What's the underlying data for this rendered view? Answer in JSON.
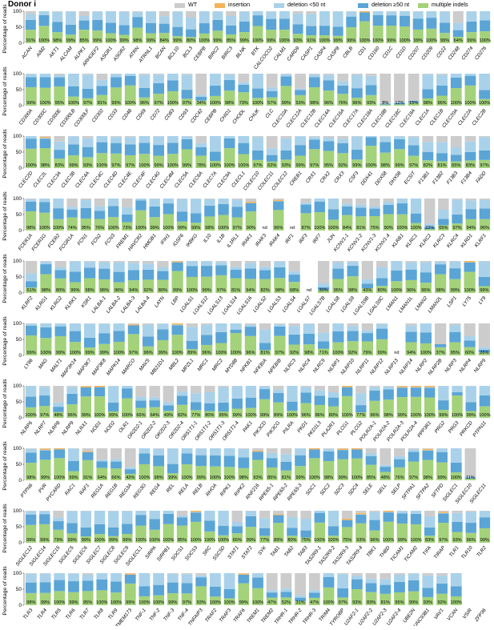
{
  "chart_data": {
    "type": "bar",
    "stacked": true,
    "title": "Donor i",
    "ylabel": "Percentage of reads",
    "ylim": [
      0,
      100
    ],
    "yticks": [
      0,
      50,
      100
    ],
    "legend_position": "top",
    "series": [
      {
        "name": "WT",
        "color": "#cccccc"
      },
      {
        "name": "insertion",
        "color": "#f5b35c"
      },
      {
        "name": "deletion <50 nt",
        "color": "#a9d2ea"
      },
      {
        "name": "deletion ≥50 nt",
        "color": "#5aa5d6"
      },
      {
        "name": "multiple indels",
        "color": "#a3d27a"
      }
    ],
    "panels": [
      {
        "genes": [
          "ACAN",
          "AIM2",
          "AKT1",
          "ALCAM",
          "ALPK1",
          "ARHGEF2",
          "ASGR1",
          "ASGR2",
          "ATRN",
          "ATRNL1",
          "BCAN",
          "BCL10",
          "BCL3",
          "CEBPB",
          "BIRC2",
          "BIRC3",
          "BLNK",
          "BTK",
          "CALCOCO2",
          "CALM1",
          "CARD9",
          "CASP1",
          "CASP4",
          "CASP8",
          "CBLB",
          "CD1",
          "CD160",
          "CD1C",
          "CD1D",
          "CD207",
          "CD209",
          "CD22",
          "CD248",
          "CD274",
          "CD276"
        ],
        "labels": [
          "91%",
          "100%",
          "98%",
          "99%",
          "85%",
          "99%",
          "100%",
          "99%",
          "98%",
          "99%",
          "84%",
          "99%",
          "80%",
          "100%",
          "99%",
          "85%",
          "99%",
          "100%",
          "99%",
          "100%",
          "93%",
          "91%",
          "100%",
          "99%",
          "99%",
          "100%",
          "100%",
          "99%",
          "100%",
          "99%",
          "100%",
          "99%",
          "64%",
          "99%",
          "100%"
        ],
        "mut": [
          91,
          100,
          98,
          99,
          85,
          99,
          100,
          99,
          98,
          99,
          84,
          99,
          80,
          100,
          99,
          85,
          99,
          100,
          99,
          100,
          93,
          91,
          100,
          99,
          99,
          100,
          100,
          99,
          100,
          99,
          100,
          99,
          64,
          99,
          100
        ]
      },
      {
        "genes": [
          "CD300A",
          "CD300C",
          "CD300E",
          "CD300LB",
          "CD300LF",
          "CD302",
          "CD33",
          "CD48",
          "CD69",
          "CD72",
          "CD83",
          "CD93",
          "CDC42",
          "CEBPB",
          "CHID1",
          "CHODL",
          "CHUK",
          "CLC",
          "CLEC10A",
          "CLEC12A",
          "CLEC12B",
          "CLEC14A",
          "CLEC16A",
          "CLEC17A",
          "CLEC18A",
          "CLEC18B",
          "CLEC18C",
          "CLEC19A",
          "CLEC1A",
          "CLEC1B",
          "CLEC20A",
          "CLEC2A",
          "CLEC2B"
        ],
        "labels": [
          "99%",
          "100%",
          "95%",
          "100%",
          "97%",
          "81%",
          "99%",
          "100%",
          "96%",
          "97%",
          "100%",
          "97%",
          "34%",
          "100%",
          "98%",
          "73%",
          "100%",
          "57%",
          "99%",
          "53%",
          "98%",
          "96%",
          "76%",
          "96%",
          "93%",
          "8%",
          "12%",
          "15%",
          "98%",
          "96%",
          "100%",
          "100%",
          "100%"
        ],
        "mut": [
          99,
          100,
          95,
          100,
          97,
          81,
          99,
          100,
          96,
          97,
          100,
          97,
          34,
          100,
          98,
          73,
          100,
          57,
          99,
          53,
          98,
          96,
          76,
          96,
          93,
          8,
          12,
          15,
          98,
          96,
          100,
          100,
          100
        ]
      },
      {
        "genes": [
          "CLEC2D",
          "CLEC2L",
          "CLEC3A",
          "CLEC3B",
          "CLEC4A",
          "CLEC4C",
          "CLEC4D",
          "CLEC4E",
          "CLEC4F",
          "CLEC4G",
          "CLEC4M",
          "CLEC5A",
          "CLEC6A",
          "CLEC7A",
          "CLEC9A",
          "CLECL1",
          "COLEC10",
          "COLEC11",
          "COLEC12",
          "CREB1",
          "CRX1",
          "CRX2",
          "CRX3",
          "CSF3",
          "DDX41",
          "DDX58",
          "DHX58",
          "ECSIT",
          "F13B1",
          "F13B2",
          "F13B3",
          "F13B4",
          "FADD"
        ],
        "labels": [
          "100%",
          "98%",
          "83%",
          "99%",
          "93%",
          "100%",
          "97%",
          "97%",
          "100%",
          "99%",
          "100%",
          "99%",
          "78%",
          "100%",
          "100%",
          "100%",
          "97%",
          "62%",
          "93%",
          "99%",
          "97%",
          "95%",
          "92%",
          "99%",
          "100%",
          "98%",
          "99%",
          "97%",
          "82%",
          "81%",
          "65%",
          "83%",
          "97%"
        ],
        "mut": [
          100,
          98,
          83,
          99,
          93,
          100,
          97,
          97,
          100,
          99,
          100,
          99,
          78,
          100,
          100,
          100,
          97,
          62,
          93,
          99,
          97,
          95,
          92,
          99,
          100,
          98,
          99,
          97,
          82,
          81,
          65,
          83,
          97
        ]
      },
      {
        "genes": [
          "FCER1A",
          "FCER1G",
          "FCER2",
          "FCGR1A",
          "FCN1",
          "FCN2",
          "FCN3",
          "FREM1",
          "HAVCR2",
          "HMGB1",
          "IFIH1",
          "IGSF6",
          "IKBKG",
          "IL10",
          "IL1B",
          "IL1RL1",
          "IRAK1",
          "IRAK3",
          "IRAK4",
          "IRF1",
          "IRF3",
          "IRF7",
          "JUN",
          "KCNV1-1",
          "KCNV1-2",
          "KCNV1-3",
          "KCNV1-4",
          "KLRB1",
          "KLRC1",
          "KLRC2",
          "KLRC3",
          "KLRC4",
          "KLRD1",
          "KLRF1"
        ],
        "labels": [
          "98%",
          "100%",
          "100%",
          "74%",
          "95%",
          "76%",
          "100%",
          "73%",
          "100%",
          "99%",
          "100%",
          "99%",
          "99%",
          "98%",
          "100%",
          "97%",
          "90%",
          "nd",
          "96%",
          "nd",
          "87%",
          "100%",
          "100%",
          "84%",
          "81%",
          "75%",
          "90%",
          "100%",
          "100%",
          "22%",
          "65%",
          "97%",
          "94%",
          "96%"
        ],
        "mut": [
          98,
          100,
          100,
          74,
          95,
          76,
          100,
          73,
          100,
          99,
          100,
          99,
          99,
          98,
          100,
          97,
          90,
          null,
          96,
          null,
          87,
          100,
          100,
          84,
          81,
          75,
          90,
          100,
          100,
          22,
          65,
          97,
          94,
          96
        ]
      },
      {
        "genes": [
          "KLRF2",
          "KLRG1",
          "KLRG2",
          "KLRK1",
          "KSR1",
          "LALBA-1",
          "LALBA-2",
          "LALBA-3",
          "LALBA-4",
          "LAYN",
          "LBP",
          "LGALS1",
          "LGALS12",
          "LGALS13",
          "LGALS14",
          "LGALS16",
          "LGALS2",
          "LGALS3",
          "LGALS4",
          "LGALS7",
          "LGALS7B",
          "LGALS8",
          "LGALS9",
          "LGALS9B",
          "LGALS9C",
          "LMAN1",
          "LMAN1L",
          "LMAN2",
          "LMAN2L",
          "LSP1",
          "LY75",
          "LY9"
        ],
        "labels": [
          "61%",
          "98%",
          "80%",
          "99%",
          "98%",
          "96%",
          "96%",
          "94%",
          "92%",
          "80%",
          "99%",
          "100%",
          "99%",
          "97%",
          "81%",
          "94%",
          "82%",
          "98%",
          "68%",
          "nd",
          "30%",
          "95%",
          "98%",
          "43%",
          "80%",
          "100%",
          "96%",
          "96%",
          "98%",
          "99%",
          "100%",
          "99%"
        ],
        "mut": [
          61,
          98,
          80,
          99,
          98,
          96,
          96,
          94,
          92,
          80,
          99,
          100,
          99,
          97,
          81,
          94,
          82,
          98,
          68,
          null,
          30,
          95,
          98,
          43,
          80,
          100,
          96,
          96,
          98,
          99,
          100,
          99
        ]
      },
      {
        "genes": [
          "LY96",
          "MAG",
          "MALT1",
          "MAP3K14",
          "MAP3K7",
          "MAP3K8",
          "MAPK14",
          "MARCO",
          "MAVS",
          "MB21D1",
          "MBL2",
          "MPZL1",
          "MRC1",
          "MRC2",
          "MYD88",
          "NFKB1",
          "NFKBIA",
          "NFKBIB",
          "NLRC3",
          "NLRC4",
          "NLRC5",
          "NLRP1",
          "NLRP10",
          "NLRP11",
          "NLRP12",
          "NLRP13",
          "NLRP14",
          "NLRP2",
          "NLRP2B",
          "NLRP3",
          "NLRP4",
          "NLRP5"
        ],
        "labels": [
          "99%",
          "100%",
          "99%",
          "100%",
          "99%",
          "99%",
          "100%",
          "97%",
          "96%",
          "99%",
          "100%",
          "89%",
          "96%",
          "100%",
          "100%",
          "96%",
          "81%",
          "97%",
          "92%",
          "98%",
          "71%",
          "100%",
          "92%",
          "79%",
          "99%",
          "nd",
          "94%",
          "100%",
          "37%",
          "95%",
          "60%",
          "26%"
        ],
        "mut": [
          99,
          100,
          99,
          100,
          99,
          99,
          100,
          97,
          96,
          99,
          100,
          89,
          96,
          100,
          100,
          96,
          81,
          97,
          92,
          98,
          71,
          100,
          92,
          79,
          99,
          null,
          94,
          100,
          37,
          95,
          60,
          26
        ]
      },
      {
        "genes": [
          "NLRP6",
          "NLRP7",
          "NLRP8",
          "NLRP9",
          "NLRX1",
          "NOD1",
          "NOD2",
          "OLR1",
          "OR2D2-1",
          "OR2D2-2",
          "OR2D2-3",
          "OR2D2-4",
          "OR51T1-1",
          "OR51T1-2",
          "OR51T1-3",
          "OR51T1-4",
          "PAK1",
          "PIK3CD",
          "PIK3CG",
          "PILRA",
          "PKD1",
          "PKD1L3",
          "PLA2R1",
          "PLCG1",
          "PLCG2",
          "POLR2A-1",
          "POLR2A-2",
          "POLR2A-3",
          "POLR2A-4",
          "PPP3R1",
          "PRG2",
          "PRG3",
          "PRKCD",
          "PTPN11"
        ],
        "labels": [
          "100%",
          "97%",
          "48%",
          "96%",
          "99%",
          "100%",
          "99%",
          "100%",
          "66%",
          "64%",
          "49%",
          "82%",
          "77%",
          "80%",
          "95%",
          "99%",
          "100%",
          "99%",
          "89%",
          "100%",
          "96%",
          "86%",
          "80%",
          "100%",
          "77%",
          "96%",
          "98%",
          "99%",
          "100%",
          "100%",
          "99%",
          "100%",
          "99%",
          "100%"
        ],
        "mut": [
          100,
          97,
          48,
          96,
          99,
          100,
          99,
          100,
          66,
          64,
          49,
          82,
          77,
          80,
          95,
          99,
          100,
          99,
          89,
          100,
          96,
          86,
          80,
          100,
          77,
          96,
          98,
          99,
          100,
          100,
          99,
          100,
          99,
          100
        ]
      },
      {
        "genes": [
          "PTPN6",
          "PVR",
          "PYCARD",
          "RAC1",
          "RAF1",
          "REG1A",
          "REG1B",
          "REG3A",
          "REG3G",
          "REG4",
          "REL",
          "RELA",
          "RELB",
          "RHOA",
          "RIPK1",
          "RIPK2",
          "RNF216",
          "RPE65-1",
          "RPE65-2",
          "RPE65-3",
          "SDC1",
          "SDC2",
          "SDC3",
          "SDC4",
          "SELE",
          "SELL",
          "SELP",
          "SFTPA1",
          "SFTPA2",
          "SFTPD",
          "SIGLEC1",
          "SIGLEC10",
          "SIGLEC11"
        ],
        "labels": [
          "98%",
          "99%",
          "100%",
          "99%",
          "91%",
          "64%",
          "66%",
          "42%",
          "100%",
          "98%",
          "99%",
          "100%",
          "99%",
          "100%",
          "100%",
          "98%",
          "93%",
          "85%",
          "81%",
          "99%",
          "100%",
          "98%",
          "99%",
          "100%",
          "85%",
          "48%",
          "76%",
          "97%",
          "98%",
          "99%",
          "100%",
          "11%"
        ],
        "mut": [
          98,
          99,
          100,
          99,
          91,
          64,
          66,
          42,
          100,
          98,
          99,
          100,
          99,
          100,
          100,
          98,
          93,
          85,
          81,
          99,
          100,
          98,
          99,
          100,
          85,
          48,
          76,
          97,
          98,
          99,
          100,
          11,
          null
        ]
      },
      {
        "genes": [
          "SIGLEC12",
          "SIGLEC14",
          "SIGLEC15",
          "SIGLEC5",
          "SIGLEC6",
          "SIGLEC7",
          "SIGLEC8",
          "SIGLEC9",
          "SIGLECL1",
          "SIRPA",
          "SIRPB1",
          "SOCS1",
          "SOCS3",
          "SRC",
          "SSC5D",
          "STAT1",
          "STAT2",
          "SYK",
          "TAB1",
          "TAB2",
          "TAB3",
          "TAS2R9-1",
          "TAS2R9-2",
          "TAS2R9-3",
          "TAS2R9-4",
          "TBK1",
          "THBD",
          "TICAM1",
          "TICAM2",
          "TIFA",
          "TIRAP",
          "TLR1",
          "TLR10",
          "TLR2"
        ],
        "labels": [
          "99%",
          "99%",
          "79%",
          "99%",
          "99%",
          "100%",
          "99%",
          "99%",
          "100%",
          "100%",
          "100%",
          "85%",
          "100%",
          "100%",
          "100%",
          "65%",
          "99%",
          "77%",
          "89%",
          "80%",
          "75%",
          "100%",
          "100%",
          "75%",
          "93%",
          "96%",
          "100%",
          "99%",
          "100%",
          "83%",
          "97%",
          "93%",
          "96%",
          "99%"
        ],
        "mut": [
          99,
          99,
          79,
          99,
          99,
          100,
          99,
          99,
          100,
          100,
          100,
          85,
          100,
          100,
          100,
          65,
          99,
          77,
          89,
          80,
          75,
          100,
          100,
          75,
          93,
          96,
          100,
          99,
          100,
          83,
          97,
          93,
          96,
          99
        ]
      },
      {
        "genes": [
          "TLR3",
          "TLR4",
          "TLR5",
          "TLR6",
          "TLR7",
          "TLR8",
          "TLR9",
          "TMEM173",
          "TNF-1",
          "TNF-2",
          "TNF-3",
          "TNF-4",
          "TNFAIP3",
          "TRAF2",
          "TRAF3",
          "TRAF6",
          "TREM1",
          "TREM2",
          "TRHR-1",
          "TRHR-2",
          "TRHR-3",
          "TRIM4",
          "TYROBP",
          "U2AF2-1",
          "U2AF2-2",
          "U2AF2-3",
          "U2AF2-4",
          "UBE2N",
          "UNC93B1",
          "VAV1",
          "VCAN",
          "VSIR",
          "ZFP36"
        ],
        "labels": [
          "98%",
          "99%",
          "100%",
          "99%",
          "95%",
          "100%",
          "100%",
          "99%",
          "100%",
          "100%",
          "99%",
          "97%",
          "93%",
          "100%",
          "100%",
          "99%",
          "100%",
          "47%",
          "52%",
          "31%",
          "47%",
          "100%",
          "97%",
          "93%",
          "83%",
          "81%",
          "95%",
          "99%",
          "93%",
          "92%",
          "100%"
        ],
        "mut": [
          98,
          99,
          100,
          99,
          95,
          100,
          100,
          99,
          100,
          100,
          99,
          97,
          93,
          100,
          100,
          99,
          100,
          47,
          52,
          31,
          47,
          100,
          97,
          93,
          83,
          81,
          95,
          99,
          93,
          92,
          100,
          null,
          null
        ]
      }
    ]
  }
}
